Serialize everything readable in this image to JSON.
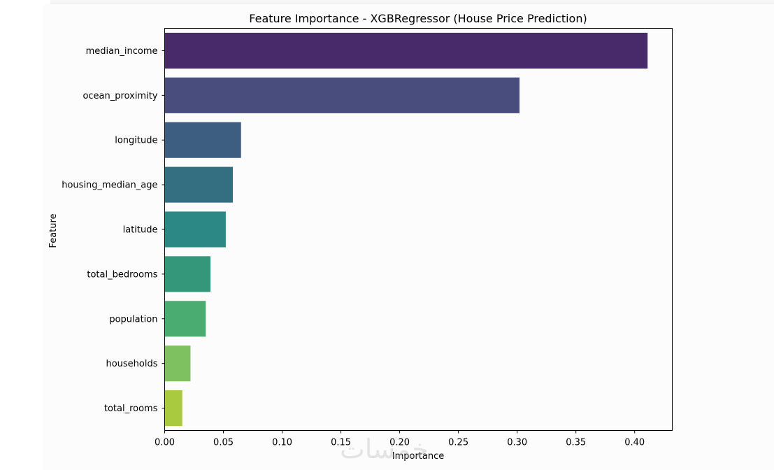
{
  "chart_data": {
    "type": "bar",
    "orientation": "horizontal",
    "title": "Feature Importance - XGBRegressor (House Price Prediction)",
    "xlabel": "Importance",
    "ylabel": "Feature",
    "categories": [
      "median_income",
      "ocean_proximity",
      "longitude",
      "housing_median_age",
      "latitude",
      "total_bedrooms",
      "population",
      "households",
      "total_rooms"
    ],
    "values": [
      0.411,
      0.302,
      0.065,
      0.058,
      0.052,
      0.039,
      0.035,
      0.022,
      0.015
    ],
    "colors": [
      "#482a6b",
      "#484d7e",
      "#3d5e80",
      "#336f80",
      "#2b8884",
      "#35977a",
      "#4bac71",
      "#7dc160",
      "#a9c93e"
    ],
    "xlim": [
      0,
      0.432
    ],
    "xticks": [
      "0.00",
      "0.05",
      "0.10",
      "0.15",
      "0.20",
      "0.25",
      "0.30",
      "0.35",
      "0.40"
    ],
    "xtick_values": [
      0,
      0.05,
      0.1,
      0.15,
      0.2,
      0.25,
      0.3,
      0.35,
      0.4
    ],
    "grid": false,
    "legend": "none"
  },
  "watermark": "خمسات"
}
